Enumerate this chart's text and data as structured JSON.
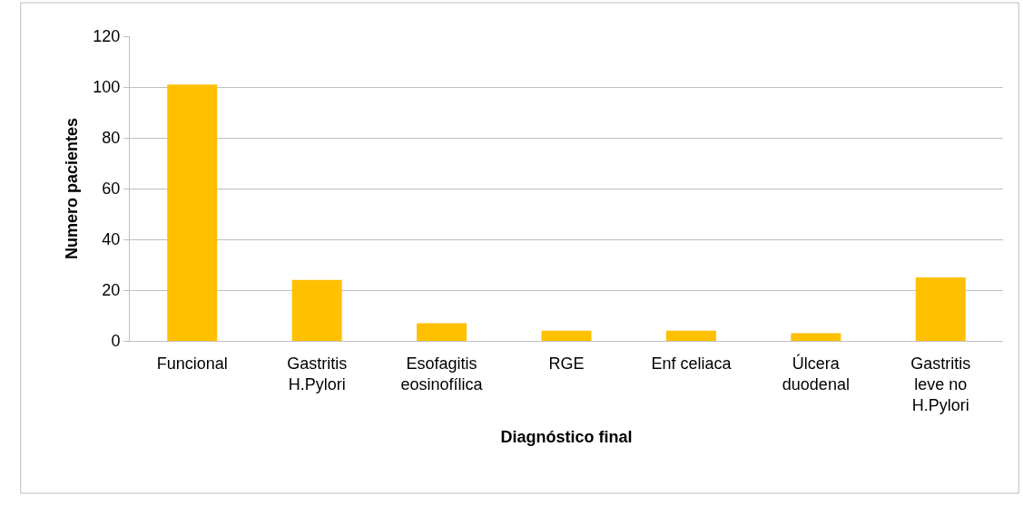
{
  "chart_data": {
    "type": "bar",
    "xlabel": "Diagnóstico final",
    "ylabel": "Numero pacientes",
    "categories": [
      "Funcional",
      "Gastritis H.Pylori",
      "Esofagitis eosinofílica",
      "RGE",
      "Enf celiaca",
      "Úlcera duodenal",
      "Gastritis leve no H.Pylori"
    ],
    "values": [
      101,
      24,
      7,
      4,
      4,
      3,
      25
    ],
    "color": "#ffc000",
    "ylim": [
      0,
      120
    ],
    "yticks": [
      0,
      20,
      40,
      60,
      80,
      100,
      120
    ],
    "grid": "y"
  }
}
